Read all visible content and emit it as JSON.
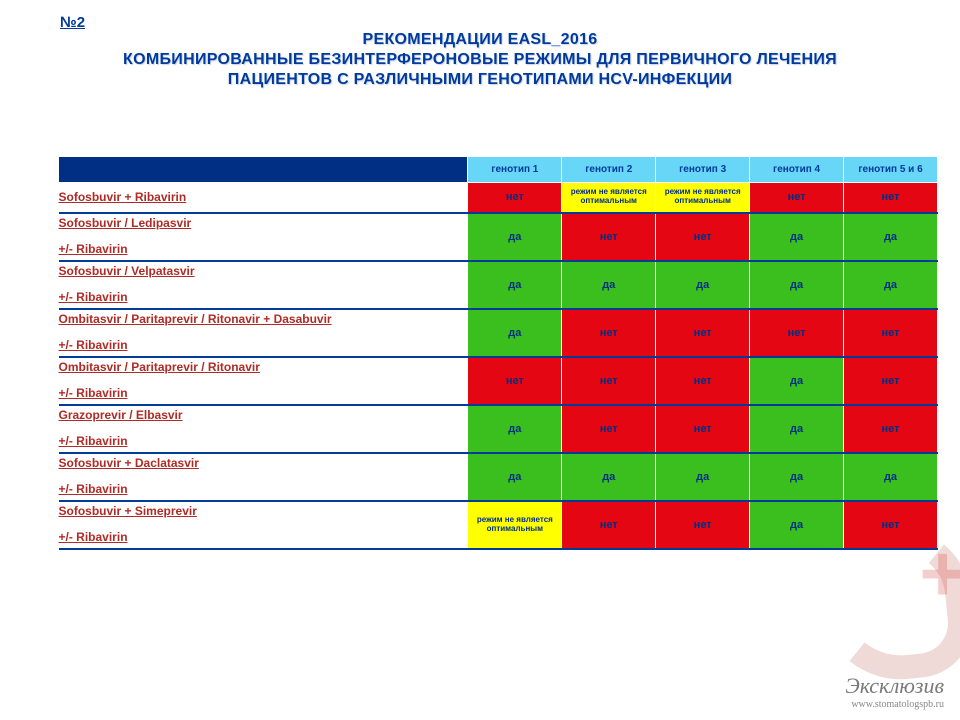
{
  "slide_number": "№2",
  "title_line1": "РЕКОМЕНДАЦИИ EASL_2016",
  "title_line2": "КОМБИНИРОВАННЫЕ БЕЗИНТЕРФЕРОНОВЫЕ РЕЖИМЫ ДЛЯ ПЕРВИЧНОГО ЛЕЧЕНИЯ",
  "title_line3": "ПАЦИЕНТОВ С РАЗЛИЧНЫМИ ГЕНОТИПАМИ HCV-ИНФЕКЦИИ",
  "columns": [
    "генотип 1",
    "генотип 2",
    "генотип 3",
    "генотип 4",
    "генотип 5 и 6"
  ],
  "legend": {
    "yes": "да",
    "no": "нет",
    "suboptimal": "режим не является оптимальным"
  },
  "colors": {
    "header_dark": "#002f84",
    "header_light": "#67d6f7",
    "yes_bg": "#3bbf1f",
    "no_bg": "#e40613",
    "sub_bg": "#ffff00",
    "title_color": "#003a9b",
    "row_label_color": "#b02b25",
    "cell_text_color": "#002f84",
    "page_bg": "#ffffff"
  },
  "rows": [
    {
      "label_main": "Sofosbuvir + Ribavirin",
      "label_sub": "",
      "cells": [
        "no",
        "sub",
        "sub",
        "no",
        "no"
      ],
      "single": true
    },
    {
      "label_main": "Sofosbuvir / Ledipasvir",
      "label_sub": "+/- Ribavirin",
      "cells": [
        "yes",
        "no",
        "no",
        "yes",
        "yes"
      ]
    },
    {
      "label_main": "Sofosbuvir / Velpatasvir",
      "label_sub": "+/- Ribavirin",
      "cells": [
        "yes",
        "yes",
        "yes",
        "yes",
        "yes"
      ]
    },
    {
      "label_main": "Ombitasvir / Paritaprevir / Ritonavir + Dasabuvir",
      "label_sub": "+/- Ribavirin",
      "cells": [
        "yes",
        "no",
        "no",
        "no",
        "no"
      ]
    },
    {
      "label_main": "Ombitasvir / Paritaprevir / Ritonavir",
      "label_sub": "+/- Ribavirin",
      "cells": [
        "no",
        "no",
        "no",
        "yes",
        "no"
      ]
    },
    {
      "label_main": "Grazoprevir / Elbasvir",
      "label_sub": "+/- Ribavirin",
      "cells": [
        "yes",
        "no",
        "no",
        "yes",
        "no"
      ]
    },
    {
      "label_main": "Sofosbuvir + Daclatasvir",
      "label_sub": "+/- Ribavirin",
      "cells": [
        "yes",
        "yes",
        "yes",
        "yes",
        "yes"
      ]
    },
    {
      "label_main": "Sofosbuvir + Simeprevir",
      "label_sub": "+/- Ribavirin",
      "cells": [
        "sub",
        "no",
        "no",
        "yes",
        "no"
      ]
    }
  ],
  "watermark": {
    "brand": "Эксклюзив",
    "url": "www.stomatologspb.ru"
  }
}
